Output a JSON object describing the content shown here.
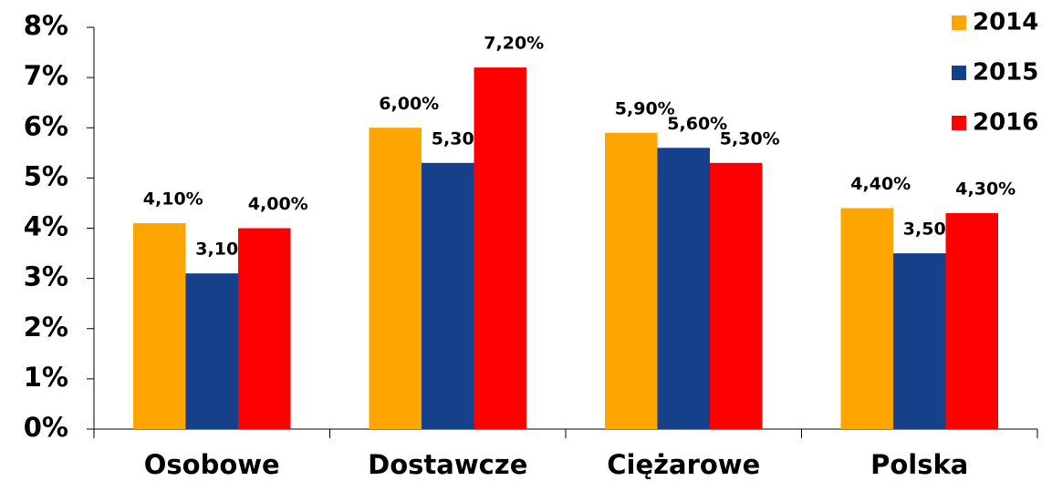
{
  "chart_data": {
    "type": "bar",
    "categories": [
      "Osobowe",
      "Dostawcze",
      "Ciężarowe",
      "Polska"
    ],
    "series": [
      {
        "name": "2014",
        "color": "#FFA500",
        "values": [
          4.1,
          6.0,
          5.9,
          4.4
        ],
        "value_labels": [
          "4,10%",
          "6,00%",
          "5,90%",
          "4,40%"
        ]
      },
      {
        "name": "2015",
        "color": "#17408B",
        "values": [
          3.1,
          5.3,
          5.6,
          3.5
        ],
        "value_labels": [
          "3,10%",
          "5,30%",
          "5,60%",
          "3,50%"
        ]
      },
      {
        "name": "2016",
        "color": "#FF0000",
        "values": [
          4.0,
          7.2,
          5.3,
          4.3
        ],
        "value_labels": [
          "4,00%",
          "7,20%",
          "5,30%",
          "4,30%"
        ]
      }
    ],
    "ylim": [
      0,
      8
    ],
    "yticks": [
      {
        "value": 0,
        "label": "0%"
      },
      {
        "value": 1,
        "label": "1%"
      },
      {
        "value": 2,
        "label": "2%"
      },
      {
        "value": 3,
        "label": "3%"
      },
      {
        "value": 4,
        "label": "4%"
      },
      {
        "value": 5,
        "label": "5%"
      },
      {
        "value": 6,
        "label": "6%"
      },
      {
        "value": 7,
        "label": "7%"
      },
      {
        "value": 8,
        "label": "8%"
      }
    ],
    "legend": "top-right",
    "grid": false
  }
}
